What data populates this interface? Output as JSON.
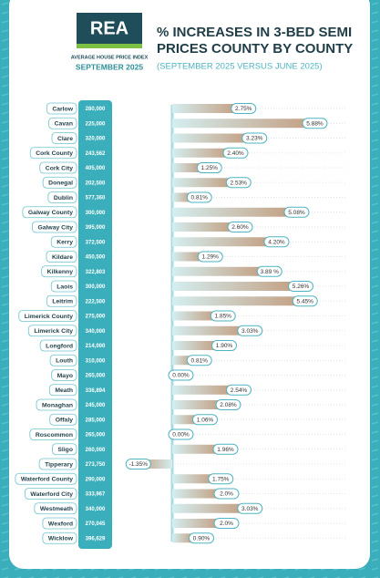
{
  "header": {
    "logo": "REA",
    "tagline": "AVERAGE HOUSE PRICE INDEX",
    "period": "SEPTEMBER 2025"
  },
  "chart_data": {
    "type": "bar",
    "title": [
      "% INCREASES IN 3-BED SEMI",
      "PRICES COUNTY BY COUNTY"
    ],
    "subtitle": "(SEPTEMBER 2025 VERSUS JUNE 2025)",
    "color": "#c4a286",
    "categories": [
      "Carlow",
      "Cavan",
      "Clare",
      "Cork County",
      "Cork City",
      "Donegal",
      "Dublin",
      "Galway County",
      "Galway City",
      "Kerry",
      "Kildare",
      "Kilkenny",
      "Laois",
      "Leitrim",
      "Limerick County",
      "Limerick City",
      "Longford",
      "Louth",
      "Mayo",
      "Meath",
      "Monaghan",
      "Offaly",
      "Roscommon",
      "Sligo",
      "Tipperary",
      "Waterford County",
      "Waterford City",
      "Westmeath",
      "Wexford",
      "Wicklow"
    ],
    "prices": [
      "280,000",
      "225,000",
      "320,000",
      "243,562",
      "405,000",
      "202,500",
      "577,360",
      "300,000",
      "395,000",
      "372,500",
      "450,500",
      "322,803",
      "300,000",
      "222,500",
      "275,000",
      "340,000",
      "214,000",
      "310,000",
      "265,000",
      "336,894",
      "245,000",
      "285,000",
      "265,000",
      "260,000",
      "273,750",
      "290,000",
      "333,967",
      "340,000",
      "270,045",
      "396,629"
    ],
    "values": [
      2.75,
      5.88,
      3.23,
      2.4,
      1.25,
      2.53,
      0.81,
      5.08,
      2.6,
      4.2,
      1.29,
      3.89,
      5.26,
      5.45,
      1.85,
      3.03,
      1.9,
      0.81,
      0.0,
      2.54,
      2.08,
      1.06,
      0.0,
      1.96,
      -1.35,
      1.75,
      2.0,
      3.03,
      2.0,
      0.9
    ],
    "value_labels": [
      "2.75%",
      "5.88%",
      "3.23%",
      "2.40%",
      "1.25%",
      "2.53%",
      "0.81%",
      "5.08%",
      "2.60%",
      "4.20%",
      "1.29%",
      "3.89 %",
      "5.26%",
      "5.45%",
      "1.85%",
      "3.03%",
      "1.90%",
      "0.81%",
      "0.00%",
      "2.54%",
      "2.08%",
      "1.06%",
      "0.00%",
      "1.96%",
      "-1.35%",
      "1.75%",
      "2.0%",
      "3.03%",
      "2.0%",
      "0.90%"
    ]
  }
}
